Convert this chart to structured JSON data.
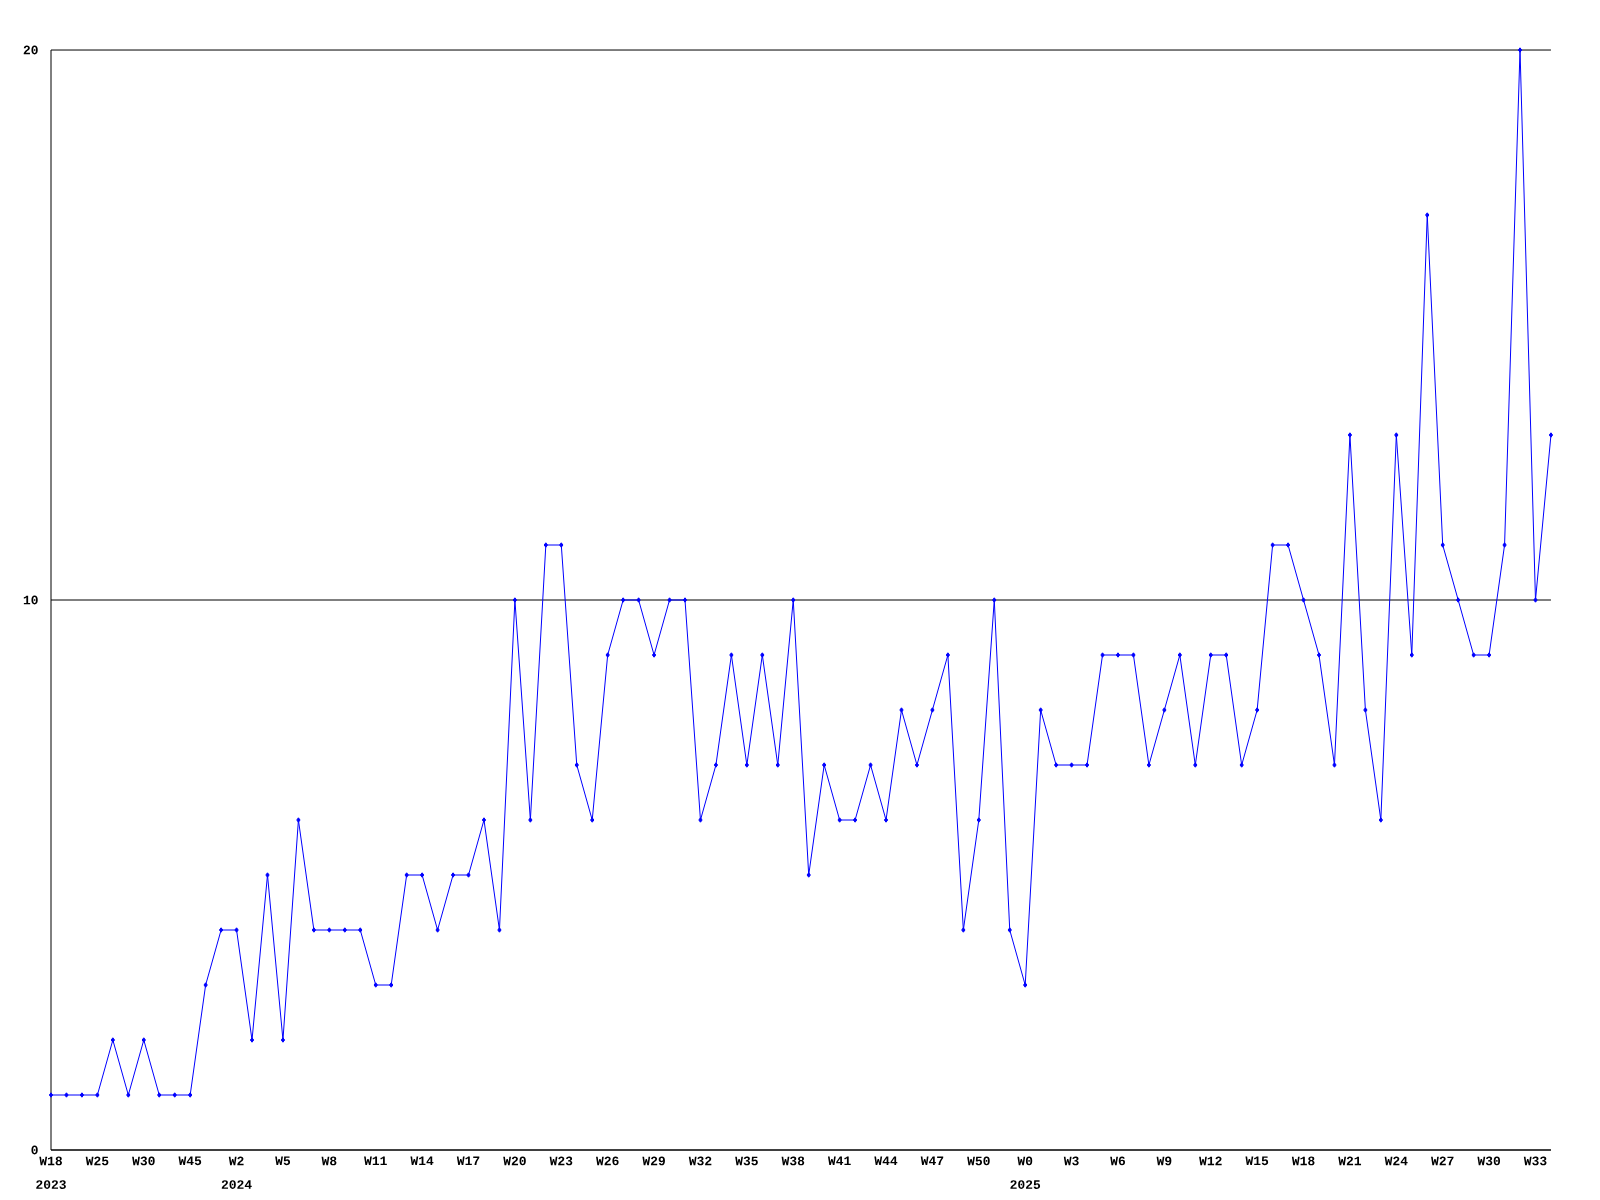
{
  "chart_data": {
    "type": "line",
    "categories": [
      "W18",
      null,
      null,
      "W25",
      null,
      null,
      "W30",
      null,
      null,
      "W45",
      null,
      null,
      "W2",
      null,
      null,
      "W5",
      null,
      null,
      "W8",
      null,
      null,
      "W11",
      null,
      null,
      "W14",
      null,
      null,
      "W17",
      null,
      null,
      "W20",
      null,
      null,
      "W23",
      null,
      null,
      "W26",
      null,
      null,
      "W29",
      null,
      null,
      "W32",
      null,
      null,
      "W35",
      null,
      null,
      "W38",
      null,
      null,
      "W41",
      null,
      null,
      "W44",
      null,
      null,
      "W47",
      null,
      null,
      "W50",
      null,
      null,
      "W0",
      null,
      null,
      "W3",
      null,
      null,
      "W6",
      null,
      null,
      "W9",
      null,
      null,
      "W12",
      null,
      null,
      "W15",
      null,
      null,
      "W18",
      null,
      null,
      "W21",
      null,
      null,
      "W24",
      null,
      null,
      "W27",
      null,
      null,
      "W30",
      null,
      null,
      "W33",
      null
    ],
    "series": [
      {
        "color": "#0000ff",
        "values": [
          1,
          1,
          1,
          1,
          2,
          1,
          2,
          1,
          1,
          1,
          3,
          4,
          4,
          2,
          5,
          2,
          6,
          4,
          4,
          4,
          4,
          3,
          3,
          5,
          5,
          4,
          5,
          5,
          6,
          4,
          10,
          6,
          11,
          11,
          7,
          6,
          9,
          10,
          10,
          9,
          10,
          10,
          6,
          7,
          9,
          7,
          9,
          7,
          10,
          5,
          7,
          6,
          6,
          7,
          6,
          8,
          7,
          8,
          9,
          4,
          6,
          10,
          4,
          3,
          8,
          7,
          7,
          7,
          9,
          9,
          9,
          7,
          8,
          9,
          7,
          9,
          9,
          7,
          8,
          11,
          11,
          10,
          9,
          7,
          13,
          8,
          6,
          13,
          9,
          17,
          11,
          10,
          9,
          9,
          11,
          20,
          10,
          13
        ]
      }
    ],
    "ylim": [
      0,
      20
    ],
    "yticks": [
      0,
      10,
      20
    ],
    "grid": "y",
    "marker": "diamond",
    "line_style": "solid",
    "annotations": [
      "2023",
      "2024",
      "2025"
    ]
  }
}
